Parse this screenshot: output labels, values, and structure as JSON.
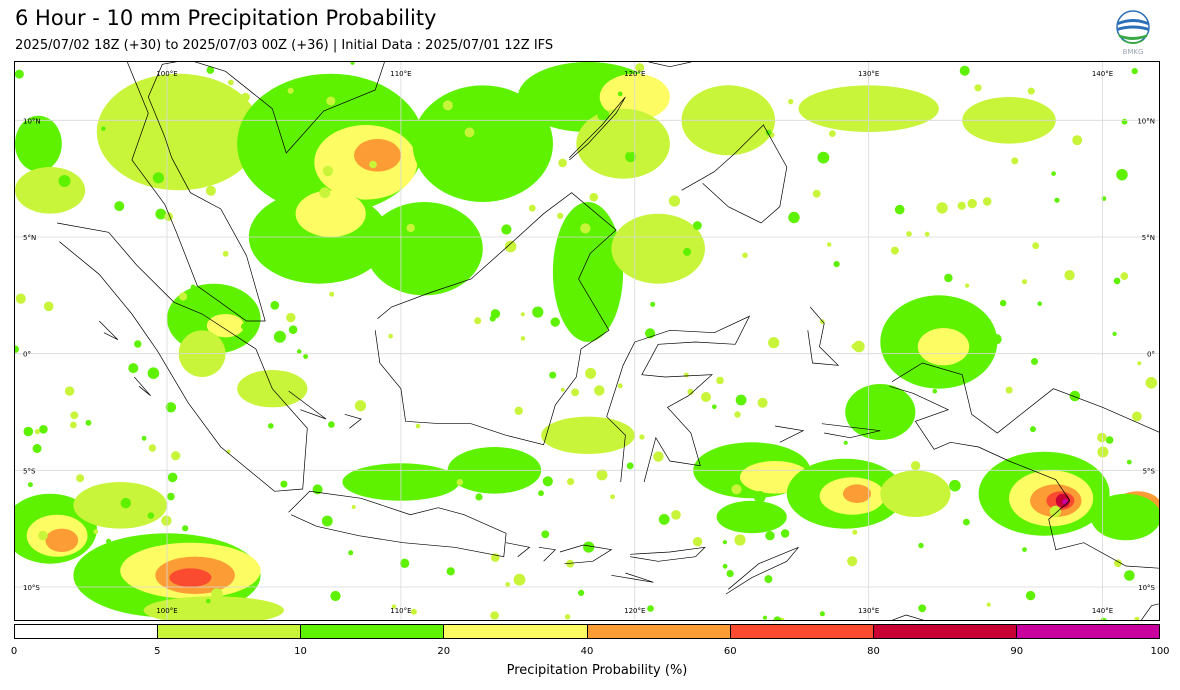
{
  "header": {
    "title": "6 Hour - 10 mm Precipitation Probability",
    "subtitle": "2025/07/02 18Z (+30) to 2025/07/03 00Z (+36) | Initial Data : 2025/07/01 12Z IFS",
    "logo_text": "BMKG"
  },
  "map": {
    "lon_labels": [
      "100°E",
      "110°E",
      "120°E",
      "130°E",
      "140°E"
    ],
    "lat_labels_left": [
      "10°N",
      "5°N",
      "0°",
      "5°S",
      "10°S"
    ],
    "lat_labels_right": [
      "10°N",
      "5°N",
      "0°",
      "5°S",
      "10°S"
    ],
    "lon_range": [
      93.5,
      142.5
    ],
    "lat_range": [
      -11.5,
      12.5
    ]
  },
  "colorbar": {
    "ticks": [
      "0",
      "5",
      "10",
      "20",
      "40",
      "60",
      "80",
      "90",
      "100"
    ],
    "colors": [
      "#ffffff",
      "#c8f53a",
      "#5ef200",
      "#fdfc63",
      "#fb9c34",
      "#fa4a2f",
      "#c90034",
      "#c9009e"
    ],
    "label": "Precipitation Probability (%)"
  }
}
